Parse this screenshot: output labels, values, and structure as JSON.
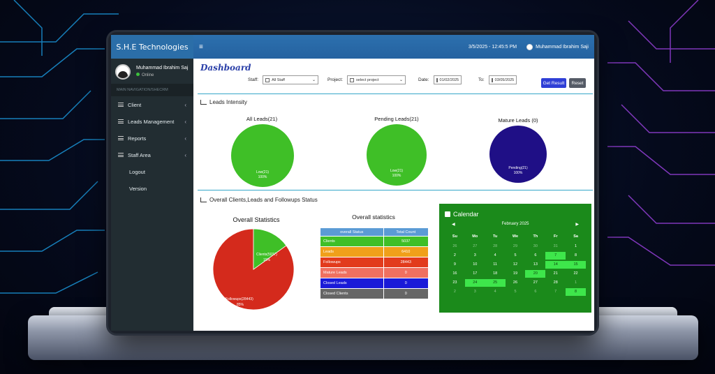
{
  "sidebar": {
    "brand": "S.H.E Technologies",
    "user_name": "Muhammad Ibrahim Saj",
    "status": "Online",
    "nav_label": "MAIN NAVIGATION/SHECRM",
    "items": [
      {
        "label": "Client"
      },
      {
        "label": "Leads Management"
      },
      {
        "label": "Reports"
      },
      {
        "label": "Staff Area"
      }
    ],
    "plain_items": [
      {
        "label": "Logout"
      },
      {
        "label": "Version"
      }
    ]
  },
  "topbar": {
    "datetime": "3/5/2025 - 12:45:5 PM",
    "user": "Muhammad Ibrahim Saji"
  },
  "page": {
    "title": "Dashboard"
  },
  "filters": {
    "staff_label": "Staff:",
    "staff_value": "All Staff",
    "project_label": "Project:",
    "project_value": "select project",
    "date_label": "Date:",
    "date_value": "01/02/2025",
    "to_label": "To:",
    "to_value": "03/05/2025",
    "get_result": "Get Result",
    "reset": "Reset"
  },
  "leads_section": {
    "title": "Leads Intensity",
    "charts": [
      {
        "title": "All Leads(21)",
        "label": "Low(21)",
        "pct": "100%",
        "color": "#3fbf27"
      },
      {
        "title": "Pending Leads(21)",
        "label": "Low(21)",
        "pct": "100%",
        "color": "#3fbf27"
      },
      {
        "title": "Mature Leads (0)",
        "label": "Pending(21)",
        "pct": "100%",
        "color": "#1f0f86"
      }
    ]
  },
  "status_section": {
    "title": "Overall Clients,Leads and Followups Status",
    "pie_title": "Overall Statistics",
    "pie": [
      {
        "label": "Clients(5037)",
        "pct": "15%",
        "value": 15,
        "color": "#3fbf27"
      },
      {
        "label": "Followups(28443)",
        "pct": "85%",
        "value": 85,
        "color": "#d42a1c"
      }
    ],
    "table_title": "Overall statistics",
    "table_headers": [
      "overall Status",
      "Total Count"
    ],
    "rows": [
      {
        "status": "Clients",
        "count": "5037",
        "color": "#3fbf27"
      },
      {
        "status": "Leads",
        "count": "6410",
        "color": "#f0a01a"
      },
      {
        "status": "Followups",
        "count": "28443",
        "color": "#e23b1c"
      },
      {
        "status": "Mature Leads",
        "count": "0",
        "color": "#f07060"
      },
      {
        "status": "Closed Leads",
        "count": "0",
        "color": "#1a1ad8"
      },
      {
        "status": "Closed Clients",
        "count": "0",
        "color": "#666666"
      }
    ]
  },
  "calendar": {
    "title": "Calendar",
    "month": "February 2025",
    "prev": "◀",
    "next": "▶",
    "days": [
      "Su",
      "Mo",
      "Tu",
      "We",
      "Th",
      "Fr",
      "Sa"
    ],
    "weeks": [
      [
        [
          "26",
          "m"
        ],
        [
          "27",
          "m"
        ],
        [
          "28",
          "m"
        ],
        [
          "29",
          "m"
        ],
        [
          "30",
          "m"
        ],
        [
          "31",
          "m"
        ],
        [
          "1",
          ""
        ]
      ],
      [
        [
          "2",
          ""
        ],
        [
          "3",
          ""
        ],
        [
          "4",
          ""
        ],
        [
          "5",
          ""
        ],
        [
          "6",
          ""
        ],
        [
          "7",
          "hl"
        ],
        [
          "8",
          ""
        ]
      ],
      [
        [
          "9",
          ""
        ],
        [
          "10",
          ""
        ],
        [
          "11",
          ""
        ],
        [
          "12",
          ""
        ],
        [
          "13",
          ""
        ],
        [
          "14",
          "hl"
        ],
        [
          "15",
          "hl"
        ]
      ],
      [
        [
          "16",
          ""
        ],
        [
          "17",
          ""
        ],
        [
          "18",
          ""
        ],
        [
          "19",
          ""
        ],
        [
          "20",
          "hl"
        ],
        [
          "21",
          ""
        ],
        [
          "22",
          ""
        ]
      ],
      [
        [
          "23",
          ""
        ],
        [
          "24",
          "hl"
        ],
        [
          "25",
          "hl"
        ],
        [
          "26",
          ""
        ],
        [
          "27",
          ""
        ],
        [
          "28",
          ""
        ],
        [
          "1",
          "m"
        ]
      ],
      [
        [
          "2",
          "m"
        ],
        [
          "3",
          "m"
        ],
        [
          "4",
          "m"
        ],
        [
          "5",
          "m"
        ],
        [
          "6",
          "m"
        ],
        [
          "7",
          "m"
        ],
        [
          "8",
          "hl"
        ]
      ]
    ]
  }
}
